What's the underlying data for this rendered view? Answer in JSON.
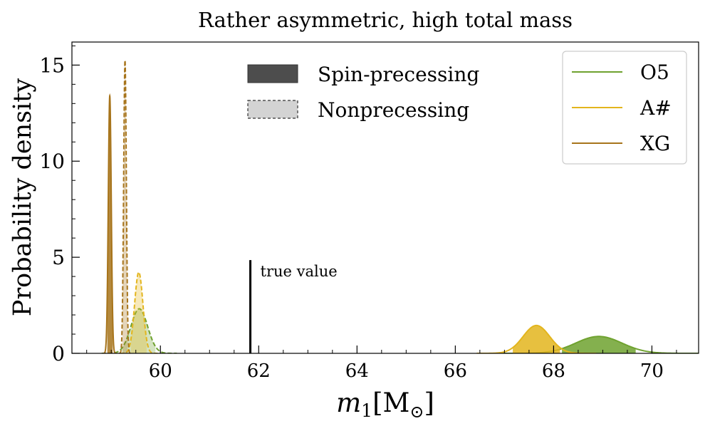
{
  "chart_data": {
    "type": "area",
    "title": "Rather asymmetric, high total mass",
    "xlabel_main": "m",
    "xlabel_sub": "1",
    "xlabel_unit_open": "[M",
    "xlabel_unit_sym": "⊙",
    "xlabel_unit_close": "]",
    "ylabel": "Probability density",
    "xlim": [
      58.2,
      70.95
    ],
    "ylim": [
      0,
      16.2
    ],
    "xticks": [
      60,
      62,
      64,
      66,
      68,
      70
    ],
    "yticks": [
      0,
      5,
      10,
      15
    ],
    "grid": false,
    "style_legend": {
      "placement": "top-center",
      "entries": [
        {
          "label": "Spin-precessing",
          "style": "solid-fill"
        },
        {
          "label": "Nonprecessing",
          "style": "dashed-light-fill"
        }
      ]
    },
    "detector_legend": {
      "placement": "top-right",
      "entries": [
        {
          "label": "O5",
          "color": "#6fa22f"
        },
        {
          "label": "A#",
          "color": "#e3b51d"
        },
        {
          "label": "XG",
          "color": "#a7741b"
        }
      ]
    },
    "annotation": {
      "label": "true value",
      "x": 61.83,
      "y_top": 4.85
    },
    "series": [
      {
        "name": "O5",
        "kind": "Spin-precessing",
        "color": "#6fa22f",
        "mean": 68.92,
        "peak": 0.88,
        "sigma": 0.47,
        "fill_range": [
          68.17,
          69.67
        ]
      },
      {
        "name": "A#",
        "kind": "Spin-precessing",
        "color": "#e3b51d",
        "mean": 67.65,
        "peak": 1.45,
        "sigma": 0.27,
        "fill_range": [
          67.17,
          68.13
        ]
      },
      {
        "name": "XG",
        "kind": "Spin-precessing",
        "color": "#a7741b",
        "mean": 58.97,
        "peak": 13.4,
        "sigma": 0.03,
        "fill_range": [
          58.92,
          59.03
        ]
      },
      {
        "name": "O5",
        "kind": "Nonprecessing",
        "color": "#6fa22f",
        "mean": 59.57,
        "peak": 2.32,
        "sigma": 0.17,
        "fill_range": [
          59.22,
          59.9
        ]
      },
      {
        "name": "A#",
        "kind": "Nonprecessing",
        "color": "#e3b51d",
        "mean": 59.56,
        "peak": 4.22,
        "sigma": 0.085,
        "fill_range": [
          59.4,
          59.72
        ]
      },
      {
        "name": "XG",
        "kind": "Nonprecessing",
        "color": "#a7741b",
        "mean": 59.28,
        "peak": 15.25,
        "sigma": 0.027,
        "fill_range": [
          59.23,
          59.33
        ]
      }
    ]
  }
}
